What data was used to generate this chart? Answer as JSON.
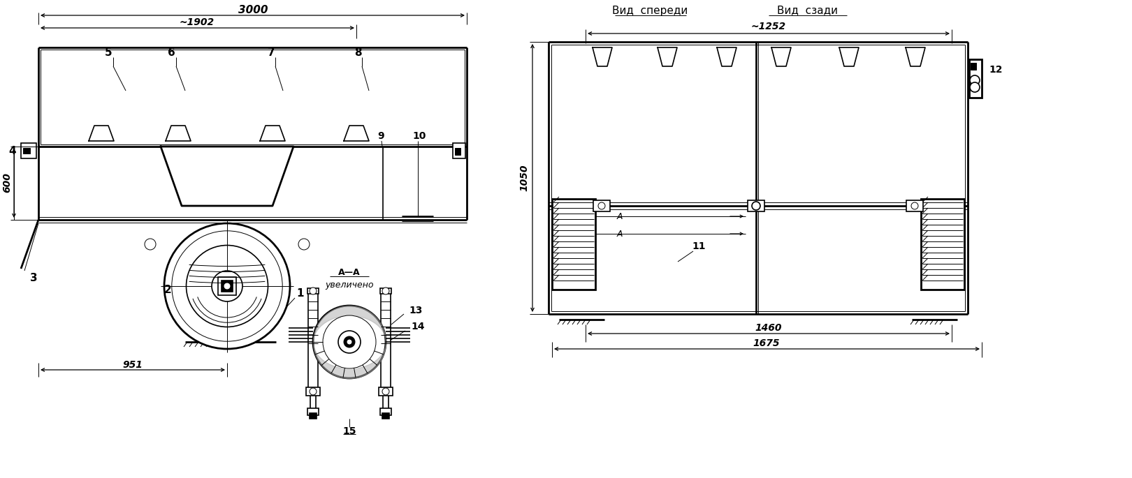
{
  "bg_color": "#ffffff",
  "line_color": "#000000",
  "fig_width": 16.2,
  "fig_height": 6.85,
  "title_front": "Вид  спереди",
  "title_rear": "Вид  сзади",
  "dim_3000": "3000",
  "dim_1902": "~1902",
  "dim_951": "951",
  "dim_600": "600",
  "dim_1252": "~1252",
  "dim_1050": "1050",
  "dim_1460": "1460",
  "dim_1675": "1675",
  "label_AA": "А—А",
  "label_uv": "увеличено",
  "parts_side": {
    "1": "1",
    "2": "2",
    "3": "3",
    "4": "4",
    "5": "5",
    "6": "6",
    "7": "7",
    "8": "8",
    "9": "9",
    "10": "10"
  },
  "parts_section": {
    "13": "13",
    "14": "14",
    "15": "15"
  },
  "parts_front": {
    "11": "11",
    "12": "12"
  }
}
